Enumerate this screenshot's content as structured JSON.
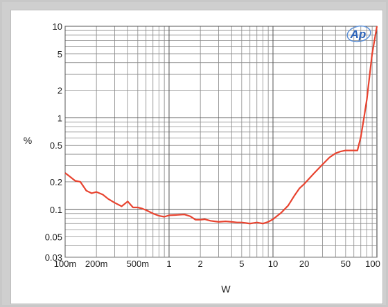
{
  "chart_data": {
    "type": "line",
    "title": "",
    "xlabel": "W",
    "ylabel": "%",
    "xscale": "log",
    "yscale": "log",
    "xlim": [
      0.1,
      100
    ],
    "ylim": [
      0.03,
      10
    ],
    "grid": true,
    "logo_text": "Ap",
    "line_color": "#e8432f",
    "x_ticks": [
      {
        "value": 0.1,
        "label": "100m"
      },
      {
        "value": 0.2,
        "label": "200m"
      },
      {
        "value": 0.5,
        "label": "500m"
      },
      {
        "value": 1,
        "label": "1"
      },
      {
        "value": 2,
        "label": "2"
      },
      {
        "value": 5,
        "label": "5"
      },
      {
        "value": 10,
        "label": "10"
      },
      {
        "value": 20,
        "label": "20"
      },
      {
        "value": 50,
        "label": "50"
      },
      {
        "value": 100,
        "label": "100"
      }
    ],
    "y_ticks": [
      {
        "value": 0.03,
        "label": "0.03"
      },
      {
        "value": 0.05,
        "label": "0.05"
      },
      {
        "value": 0.1,
        "label": "0.1"
      },
      {
        "value": 0.2,
        "label": "0.2"
      },
      {
        "value": 0.5,
        "label": "0.5"
      },
      {
        "value": 1,
        "label": "1"
      },
      {
        "value": 2,
        "label": "2"
      },
      {
        "value": 5,
        "label": "5"
      },
      {
        "value": 10,
        "label": "10"
      }
    ],
    "series": [
      {
        "x": [
          0.1,
          0.11,
          0.125,
          0.14,
          0.16,
          0.18,
          0.2,
          0.23,
          0.26,
          0.3,
          0.35,
          0.4,
          0.45,
          0.5,
          0.55,
          0.6,
          0.7,
          0.8,
          0.9,
          1.0,
          1.2,
          1.4,
          1.6,
          1.8,
          2.0,
          2.2,
          2.5,
          3.0,
          3.5,
          4.0,
          4.5,
          5.0,
          5.5,
          6.0,
          7.0,
          8.0,
          9.0,
          10,
          11,
          12,
          14,
          16,
          18,
          20,
          25,
          30,
          35,
          40,
          45,
          50,
          55,
          60,
          65,
          70,
          75,
          80,
          90,
          100
        ],
        "y": [
          0.25,
          0.23,
          0.205,
          0.2,
          0.16,
          0.15,
          0.155,
          0.145,
          0.13,
          0.118,
          0.108,
          0.122,
          0.105,
          0.105,
          0.102,
          0.098,
          0.09,
          0.085,
          0.083,
          0.086,
          0.087,
          0.088,
          0.084,
          0.077,
          0.077,
          0.078,
          0.075,
          0.073,
          0.074,
          0.073,
          0.072,
          0.072,
          0.071,
          0.07,
          0.072,
          0.07,
          0.073,
          0.078,
          0.085,
          0.092,
          0.11,
          0.14,
          0.17,
          0.19,
          0.25,
          0.31,
          0.37,
          0.41,
          0.43,
          0.44,
          0.44,
          0.44,
          0.44,
          0.62,
          1.0,
          1.6,
          5.0,
          10.0
        ]
      }
    ]
  }
}
